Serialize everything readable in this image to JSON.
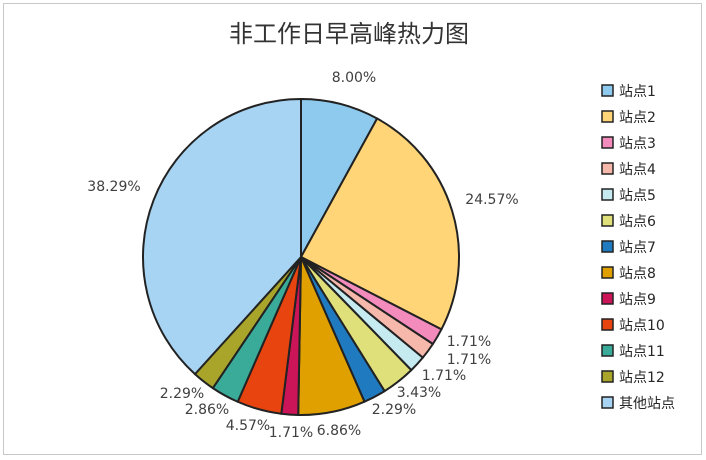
{
  "chart_data": {
    "type": "pie",
    "title": "非工作日早高峰热力图",
    "categories": [
      "站点1",
      "站点2",
      "站点3",
      "站点4",
      "站点5",
      "站点6",
      "站点7",
      "站点8",
      "站点9",
      "站点10",
      "站点11",
      "站点12",
      "其他站点"
    ],
    "values": [
      8.0,
      24.57,
      1.71,
      1.71,
      1.71,
      3.43,
      2.29,
      6.86,
      1.71,
      4.57,
      2.86,
      2.29,
      38.29
    ],
    "labels": [
      "8.00%",
      "24.57%",
      "1.71%",
      "1.71%",
      "1.71%",
      "3.43%",
      "2.29%",
      "6.86%",
      "1.71%",
      "4.57%",
      "2.86%",
      "2.29%",
      "38.29%"
    ],
    "colors": [
      "#8ecaee",
      "#ffd577",
      "#f38bbd",
      "#f7b8ac",
      "#c5eaf0",
      "#dfe07a",
      "#1f7ac0",
      "#e0a000",
      "#cc1458",
      "#e84410",
      "#3aaa99",
      "#a8a52a",
      "#a7d4f2"
    ],
    "start_angle": 0,
    "direction": "clockwise",
    "legend": "right"
  }
}
